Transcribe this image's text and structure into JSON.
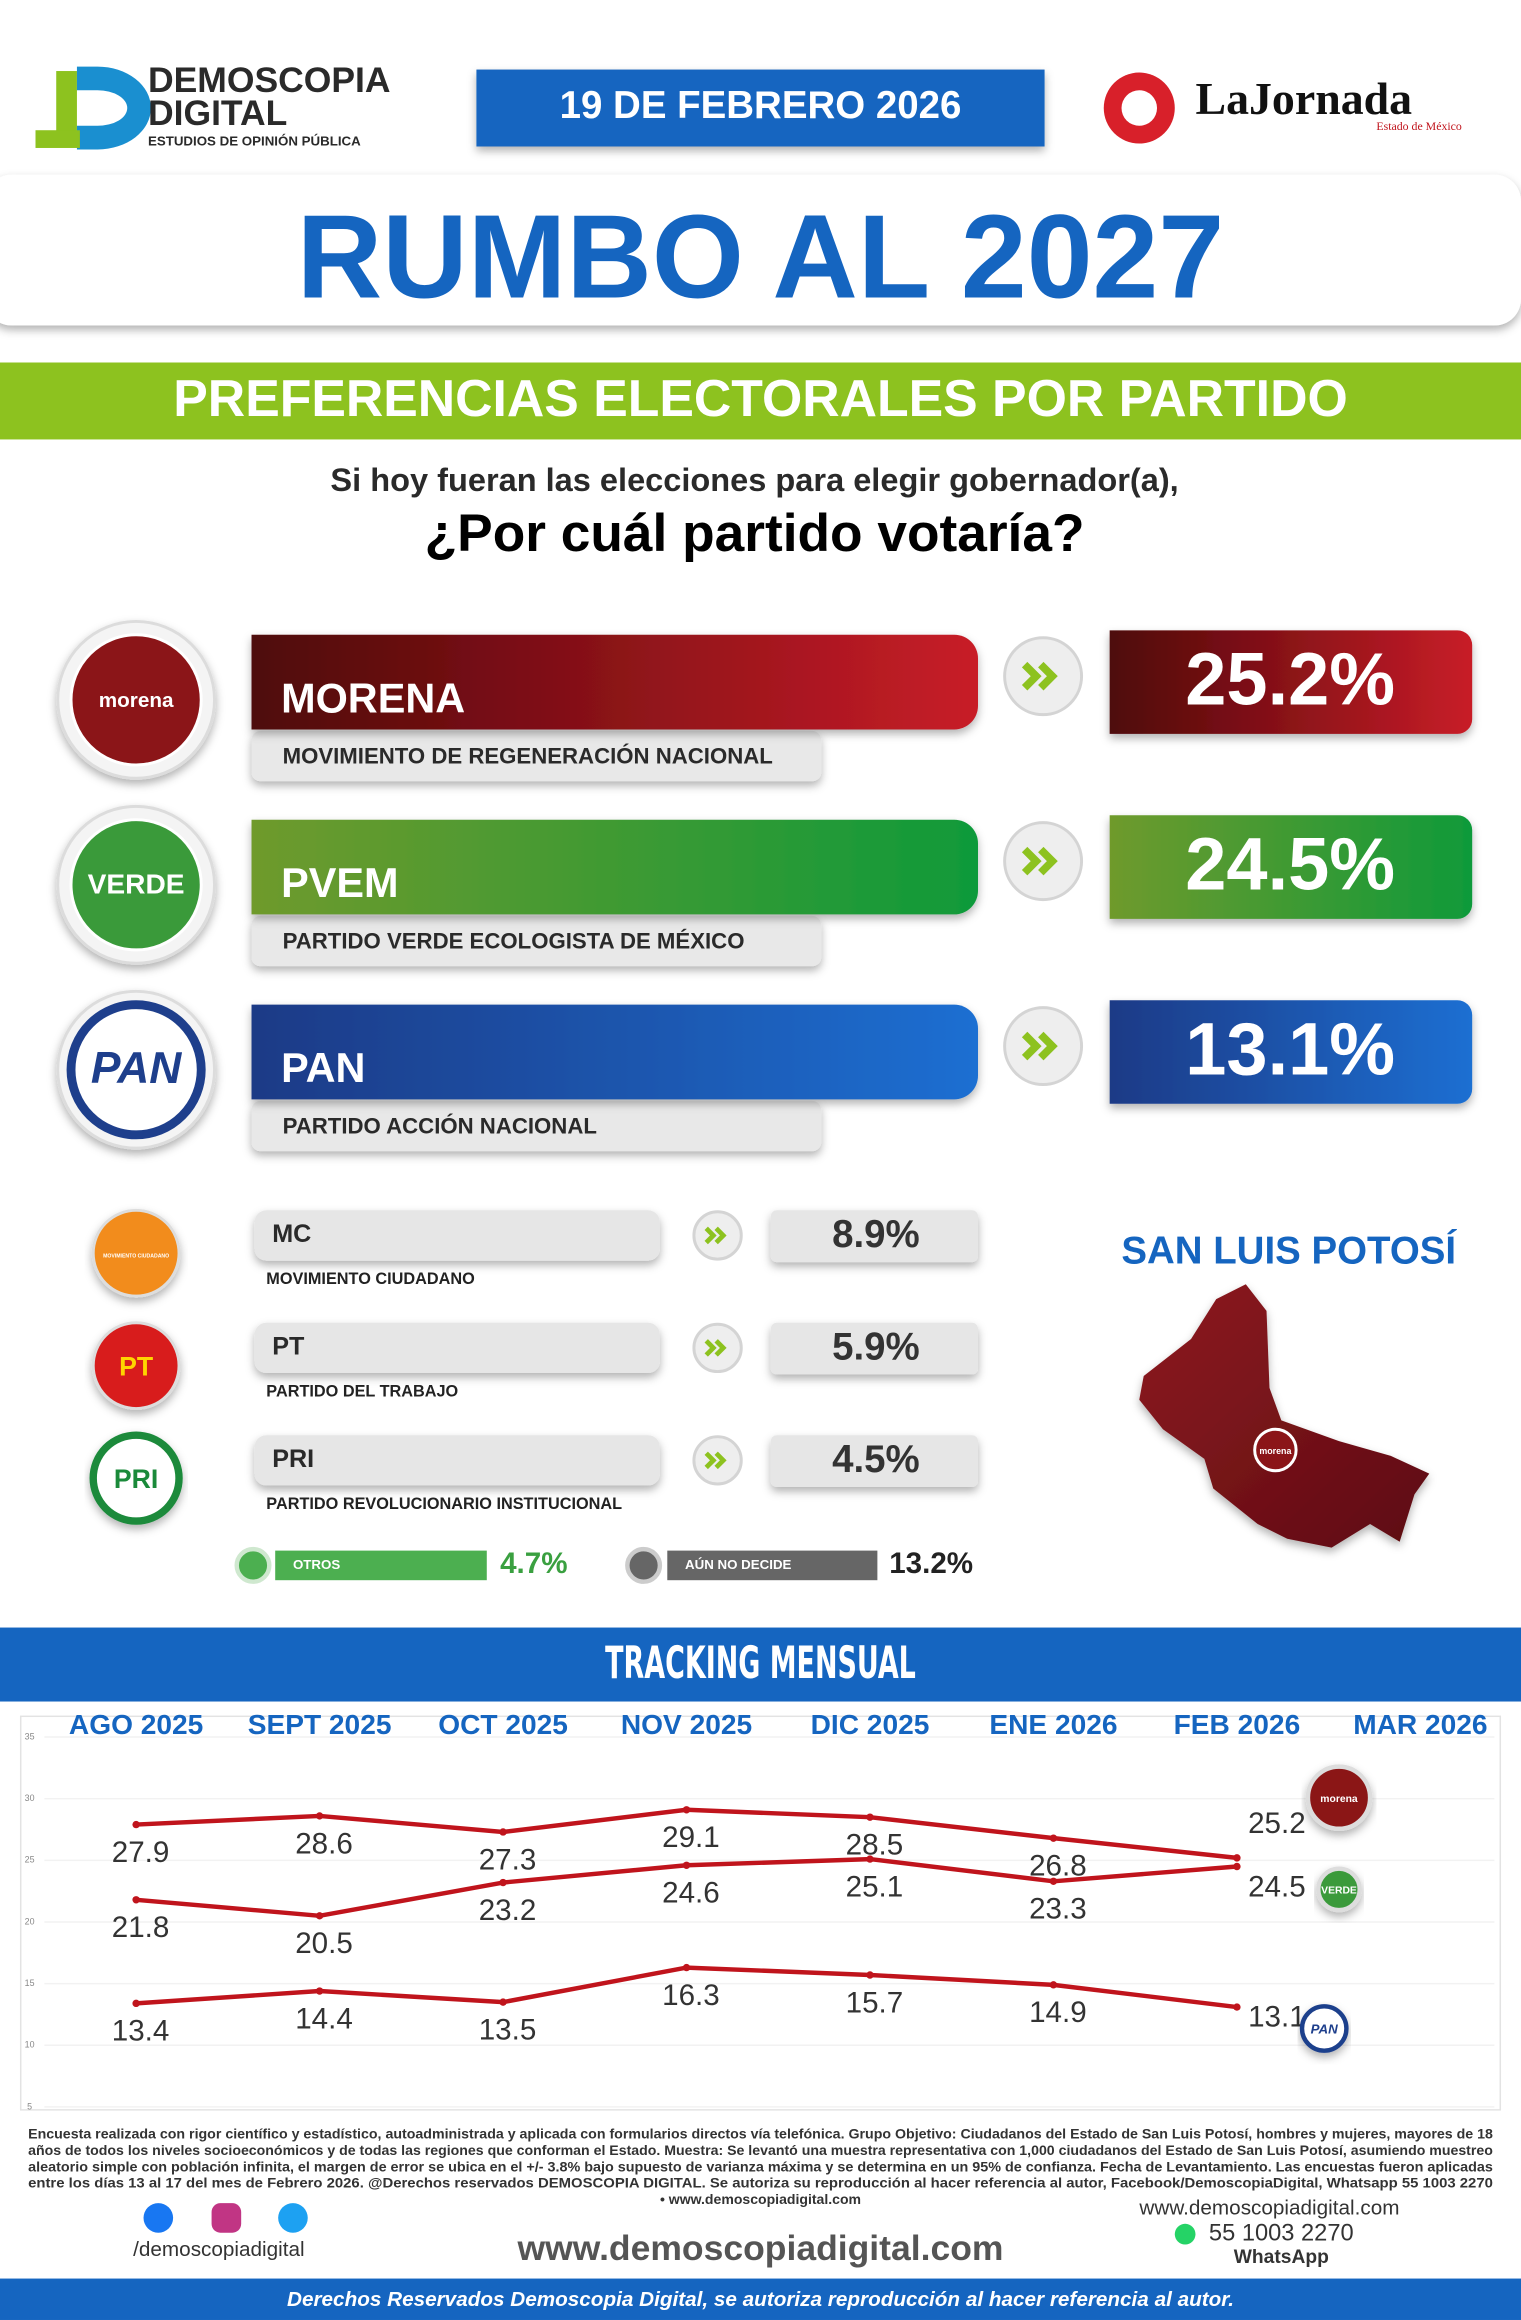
{
  "header": {
    "brand": [
      "DEMOSCOPIA",
      "DIGITAL"
    ],
    "brand_tagline": "ESTUDIOS DE OPINIÓN PÚBLICA",
    "date": "19 DE FEBRERO 2026",
    "partner": "LaJornada",
    "partner_region": "Estado de México",
    "title": "RUMBO AL 2027",
    "subtitle": "PREFERENCIAS ELECTORALES POR PARTIDO",
    "question": [
      "Si hoy fueran las elecciones para elegir gobernador(a),",
      "¿Por cuál partido votaría?"
    ]
  },
  "main_parties": [
    {
      "logo": "morena",
      "name": "MORENA",
      "full_name": "MOVIMIENTO DE REGENERACIÓN NACIONAL",
      "value": "25.2%"
    },
    {
      "logo": "VERDE",
      "name": "PVEM",
      "full_name": "PARTIDO VERDE ECOLOGISTA DE MÉXICO",
      "value": "24.5%"
    },
    {
      "logo": "PAN",
      "name": "PAN",
      "full_name": "PARTIDO ACCIÓN NACIONAL",
      "value": "13.1%"
    }
  ],
  "minor_parties": [
    {
      "logo": "MOVIMIENTO CIUDADANO",
      "name": "MC",
      "full_name": "MOVIMIENTO CIUDADANO",
      "value": "8.9%"
    },
    {
      "logo": "PT",
      "name": "PT",
      "full_name": "PARTIDO DEL TRABAJO",
      "value": "5.9%"
    },
    {
      "logo": "PRI",
      "name": "PRI",
      "full_name": "PARTIDO REVOLUCIONARIO INSTITUCIONAL",
      "value": "4.5%"
    }
  ],
  "others": {
    "label": "OTROS",
    "value": "4.7%"
  },
  "undecided": {
    "label": "AÚN NO DECIDE",
    "value": "13.2%"
  },
  "map": {
    "title": "SAN LUIS POTOSÍ",
    "logo": "morena"
  },
  "chart_data": {
    "type": "line",
    "title": "TRACKING MENSUAL",
    "categories": [
      "AGO 2025",
      "SEPT 2025",
      "OCT 2025",
      "NOV 2025",
      "DIC 2025",
      "ENE 2026",
      "FEB 2026",
      "MAR 2026"
    ],
    "series": [
      {
        "name": "morena",
        "color": "#c0141c",
        "values": [
          27.9,
          28.6,
          27.3,
          29.1,
          28.5,
          26.8,
          25.2,
          null
        ]
      },
      {
        "name": "VERDE",
        "color": "#c0141c",
        "values": [
          21.8,
          20.5,
          23.2,
          24.6,
          25.1,
          23.3,
          24.5,
          null
        ]
      },
      {
        "name": "PAN",
        "color": "#c0141c",
        "values": [
          13.4,
          14.4,
          13.5,
          16.3,
          15.7,
          14.9,
          13.1,
          null
        ]
      }
    ],
    "ylim": [
      5,
      35
    ],
    "yticks": [
      5,
      10,
      15,
      20,
      25,
      30,
      35
    ],
    "grid": true
  },
  "footer": {
    "disclaimer": [
      "Encuesta realizada con rigor científico y estadístico, autoadministrada y aplicada con formularios directos vía telefónica. Grupo Objetivo: Ciudadanos del Estado de San Luis Potosí, hombres y mujeres, mayores de 18",
      "años de todos los niveles socioeconómicos y de todas las regiones que conforman el Estado. Muestra: Se levantó una muestra representativa con 1,000 ciudadanos del Estado de San Luis Potosí, asumiendo muestreo",
      "aleatorio simple con población infinita, el margen de error se ubica en el +/- 3.8% bajo supuesto de varianza máxima y se determina en un 95% de confianza. Fecha de Levantamiento. Las encuestas fueron aplicadas",
      "entre los días 13 al 17 del mes de Febrero 2026. @Derechos reservados DEMOSCOPIA DIGITAL. Se autoriza su reproducción al hacer referencia al autor, Facebook/DemoscopiaDigital, Whatsapp 55 1003 2270",
      "• www.demoscopiadigital.com"
    ],
    "social_handle": "/demoscopiadigital",
    "website": "www.demoscopiadigital.com",
    "contact_website": "www.demoscopiadigital.com",
    "phone": "55 1003 2270",
    "phone_label": "WhatsApp",
    "rights": "Derechos Reservados Demoscopia Digital, se autoriza reproducción al hacer referencia al autor."
  }
}
